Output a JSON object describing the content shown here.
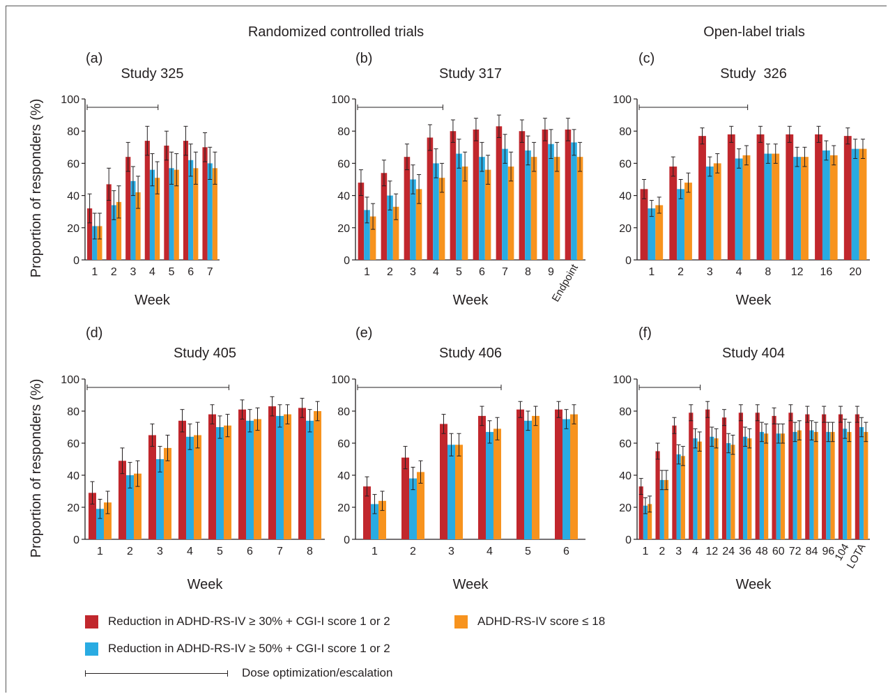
{
  "group_titles": {
    "rct": "Randomized controlled trials",
    "open": "Open-label trials"
  },
  "colors": {
    "r30": "#c1272d",
    "r50": "#29abe2",
    "rs18": "#f7931e"
  },
  "legend": {
    "r30": "Reduction in ADHD-RS-IV ≥ 30% + CGI-I score 1 or 2",
    "r50": "Reduction in ADHD-RS-IV ≥ 50% + CGI-I score 1 or 2",
    "rs18": "ADHD-RS-IV score ≤ 18",
    "dose": "Dose optimization/escalation"
  },
  "ylabel": "Proportion of responders (%)",
  "chart_data": [
    {
      "panel": "(a)",
      "title": "Study 325",
      "type": "bar",
      "xlabel": "Week",
      "ylim": [
        0,
        100
      ],
      "yticks": [
        0,
        20,
        40,
        60,
        80,
        100
      ],
      "categories": [
        "1",
        "2",
        "3",
        "4",
        "5",
        "6",
        "7"
      ],
      "dose_escalation_through": "4",
      "series": [
        {
          "key": "r30",
          "values": [
            32,
            47,
            64,
            74,
            71,
            74,
            70
          ],
          "err": [
            9,
            10,
            9,
            9,
            9,
            9,
            9
          ]
        },
        {
          "key": "r50",
          "values": [
            21,
            34,
            49,
            56,
            57,
            62,
            60
          ],
          "err": [
            8,
            9,
            9,
            10,
            10,
            10,
            10
          ]
        },
        {
          "key": "rs18",
          "values": [
            21,
            36,
            42,
            51,
            56,
            57,
            57
          ],
          "err": [
            8,
            10,
            10,
            10,
            10,
            10,
            10
          ]
        }
      ]
    },
    {
      "panel": "(b)",
      "title": "Study 317",
      "type": "bar",
      "xlabel": "Week",
      "ylim": [
        0,
        100
      ],
      "yticks": [
        0,
        20,
        40,
        60,
        80,
        100
      ],
      "categories": [
        "1",
        "2",
        "3",
        "4",
        "5",
        "6",
        "7",
        "8",
        "9",
        "Endpoint"
      ],
      "dose_escalation_through": "4",
      "series": [
        {
          "key": "r30",
          "values": [
            48,
            54,
            64,
            76,
            80,
            81,
            83,
            80,
            81,
            81
          ],
          "err": [
            8,
            8,
            8,
            8,
            7,
            7,
            7,
            7,
            7,
            7
          ]
        },
        {
          "key": "r50",
          "values": [
            31,
            40,
            50,
            60,
            66,
            64,
            69,
            68,
            72,
            73
          ],
          "err": [
            8,
            9,
            9,
            9,
            9,
            9,
            9,
            9,
            9,
            8
          ]
        },
        {
          "key": "rs18",
          "values": [
            27,
            33,
            44,
            51,
            58,
            56,
            58,
            64,
            64,
            64
          ],
          "err": [
            8,
            8,
            9,
            9,
            9,
            9,
            9,
            9,
            9,
            9
          ]
        }
      ]
    },
    {
      "panel": "(c)",
      "title": "Study  326",
      "type": "bar",
      "xlabel": "Week",
      "ylim": [
        0,
        100
      ],
      "yticks": [
        0,
        20,
        40,
        60,
        80,
        100
      ],
      "categories": [
        "1",
        "2",
        "3",
        "4",
        "8",
        "12",
        "16",
        "20"
      ],
      "dose_escalation_through": "4",
      "series": [
        {
          "key": "r30",
          "values": [
            44,
            58,
            77,
            78,
            78,
            78,
            78,
            77
          ],
          "err": [
            6,
            6,
            5,
            5,
            5,
            5,
            5,
            5
          ]
        },
        {
          "key": "r50",
          "values": [
            32,
            44,
            58,
            63,
            66,
            64,
            68,
            69
          ],
          "err": [
            5,
            6,
            6,
            6,
            6,
            6,
            6,
            6
          ]
        },
        {
          "key": "rs18",
          "values": [
            34,
            48,
            60,
            65,
            66,
            64,
            65,
            69
          ],
          "err": [
            5,
            6,
            6,
            6,
            6,
            6,
            6,
            6
          ]
        }
      ]
    },
    {
      "panel": "(d)",
      "title": "Study 405",
      "type": "bar",
      "xlabel": "Week",
      "ylim": [
        0,
        100
      ],
      "yticks": [
        0,
        20,
        40,
        60,
        80,
        100
      ],
      "categories": [
        "1",
        "2",
        "3",
        "4",
        "5",
        "6",
        "7",
        "8"
      ],
      "dose_escalation_through": "5",
      "series": [
        {
          "key": "r30",
          "values": [
            29,
            49,
            65,
            74,
            78,
            81,
            83,
            82
          ],
          "err": [
            7,
            8,
            7,
            7,
            6,
            6,
            6,
            6
          ]
        },
        {
          "key": "r50",
          "values": [
            19,
            40,
            50,
            64,
            70,
            74,
            77,
            74
          ],
          "err": [
            6,
            8,
            8,
            8,
            7,
            7,
            7,
            7
          ]
        },
        {
          "key": "rs18",
          "values": [
            23,
            41,
            57,
            65,
            71,
            75,
            78,
            80
          ],
          "err": [
            7,
            8,
            8,
            8,
            7,
            7,
            6,
            6
          ]
        }
      ]
    },
    {
      "panel": "(e)",
      "title": "Study 406",
      "type": "bar",
      "xlabel": "Week",
      "ylim": [
        0,
        100
      ],
      "yticks": [
        0,
        20,
        40,
        60,
        80,
        100
      ],
      "categories": [
        "1",
        "2",
        "3",
        "4",
        "5",
        "6"
      ],
      "dose_escalation_through": "4",
      "series": [
        {
          "key": "r30",
          "values": [
            33,
            51,
            72,
            77,
            81,
            81
          ],
          "err": [
            6,
            7,
            6,
            6,
            5,
            5
          ]
        },
        {
          "key": "r50",
          "values": [
            22,
            38,
            59,
            67,
            74,
            75
          ],
          "err": [
            6,
            7,
            7,
            7,
            6,
            6
          ]
        },
        {
          "key": "rs18",
          "values": [
            24,
            42,
            59,
            69,
            77,
            78
          ],
          "err": [
            6,
            7,
            7,
            7,
            6,
            6
          ]
        }
      ]
    },
    {
      "panel": "(f)",
      "title": "Study 404",
      "type": "bar",
      "xlabel": "Week",
      "ylim": [
        0,
        100
      ],
      "yticks": [
        0,
        20,
        40,
        60,
        80,
        100
      ],
      "categories": [
        "1",
        "2",
        "3",
        "4",
        "12",
        "24",
        "36",
        "48",
        "60",
        "72",
        "84",
        "96",
        "104",
        "LOTA"
      ],
      "dose_escalation_through": "4",
      "series": [
        {
          "key": "r30",
          "values": [
            33,
            55,
            71,
            79,
            81,
            76,
            79,
            79,
            77,
            79,
            78,
            78,
            78,
            78
          ],
          "err": [
            5,
            5,
            5,
            5,
            5,
            5,
            5,
            5,
            5,
            5,
            5,
            5,
            5,
            5
          ]
        },
        {
          "key": "r50",
          "values": [
            21,
            37,
            53,
            63,
            64,
            60,
            64,
            67,
            66,
            67,
            68,
            67,
            69,
            70
          ],
          "err": [
            5,
            6,
            6,
            6,
            6,
            6,
            6,
            6,
            6,
            6,
            6,
            6,
            6,
            6
          ]
        },
        {
          "key": "rs18",
          "values": [
            22,
            37,
            52,
            61,
            63,
            59,
            63,
            66,
            66,
            68,
            67,
            67,
            67,
            67
          ],
          "err": [
            5,
            6,
            6,
            6,
            6,
            6,
            6,
            6,
            6,
            6,
            6,
            6,
            6,
            6
          ]
        }
      ]
    }
  ]
}
